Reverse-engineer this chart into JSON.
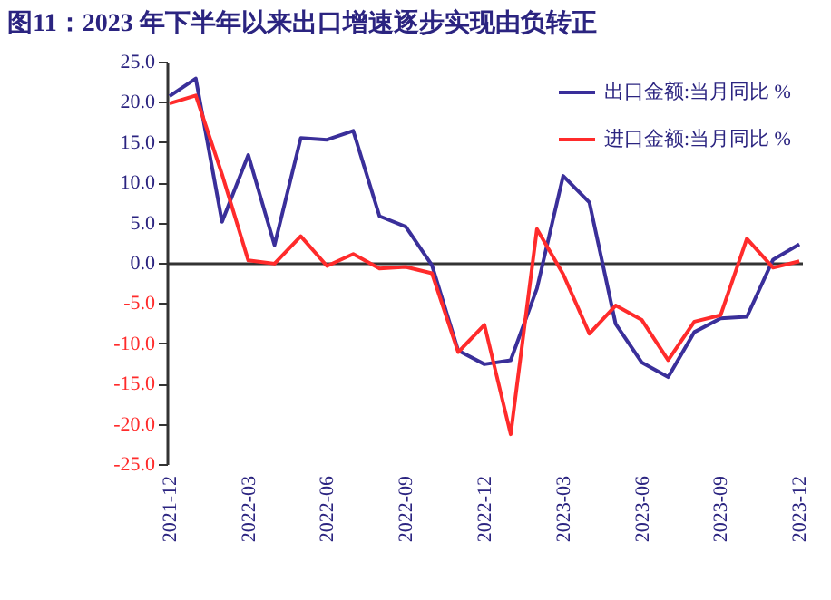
{
  "chart_data": {
    "type": "line",
    "title": "图11：2023 年下半年以来出口增速逐步实现由负转正",
    "categories": [
      "2021-12",
      null,
      null,
      "2022-03",
      null,
      null,
      "2022-06",
      null,
      null,
      "2022-09",
      null,
      null,
      "2022-12",
      null,
      null,
      "2023-03",
      null,
      null,
      "2023-06",
      null,
      null,
      "2023-09",
      null,
      null,
      "2023-12"
    ],
    "series": [
      {
        "name": "出口金额:当月同比 %",
        "color": "#3a2f9a",
        "values": [
          20.7,
          22.9,
          5.1,
          13.4,
          2.2,
          15.5,
          15.3,
          16.4,
          5.8,
          4.5,
          -0.3,
          -10.9,
          -12.6,
          -12.1,
          -3.2,
          10.8,
          7.5,
          -7.6,
          -12.4,
          -14.2,
          -8.6,
          -6.9,
          -6.7,
          0.4,
          2.3
        ]
      },
      {
        "name": "进口金额:当月同比 %",
        "color": "#ff2b2b",
        "values": [
          19.8,
          20.8,
          11.0,
          0.3,
          -0.1,
          3.3,
          -0.4,
          1.1,
          -0.7,
          -0.5,
          -1.3,
          -11.1,
          -7.7,
          -21.3,
          4.2,
          -1.4,
          -8.8,
          -5.3,
          -7.1,
          -12.1,
          -7.3,
          -6.5,
          3.0,
          -0.6,
          0.2
        ]
      }
    ],
    "ylim": [
      -25,
      25
    ],
    "yticks": [
      {
        "value": -25,
        "label": "-25.0"
      },
      {
        "value": -20,
        "label": "-20.0"
      },
      {
        "value": -15,
        "label": "-15.0"
      },
      {
        "value": -10,
        "label": "-10.0"
      },
      {
        "value": -5,
        "label": "-5.0"
      },
      {
        "value": 0,
        "label": "0.0"
      },
      {
        "value": 5,
        "label": "5.0"
      },
      {
        "value": 10,
        "label": "10.0"
      },
      {
        "value": 15,
        "label": "15.0"
      },
      {
        "value": 20,
        "label": "20.0"
      },
      {
        "value": 25,
        "label": "25.0"
      }
    ],
    "legend": "top right",
    "marker": "none",
    "line_style": "solid"
  }
}
